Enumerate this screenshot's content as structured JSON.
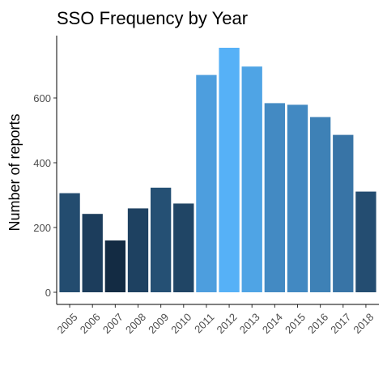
{
  "chart_data": {
    "type": "bar",
    "title": "SSO Frequency by Year",
    "xlabel": "",
    "ylabel": "Number of reports",
    "categories": [
      "2005",
      "2006",
      "2007",
      "2008",
      "2009",
      "2010",
      "2011",
      "2012",
      "2013",
      "2014",
      "2015",
      "2016",
      "2017",
      "2018"
    ],
    "values": [
      306,
      242,
      160,
      259,
      323,
      274,
      671,
      755,
      697,
      584,
      579,
      541,
      486,
      311
    ],
    "ylim": [
      0,
      790
    ],
    "yticks": [
      0,
      200,
      400,
      600
    ],
    "grid": false,
    "legend": "none",
    "color_scale": {
      "low": "#132b43",
      "high": "#56b1f7"
    }
  }
}
